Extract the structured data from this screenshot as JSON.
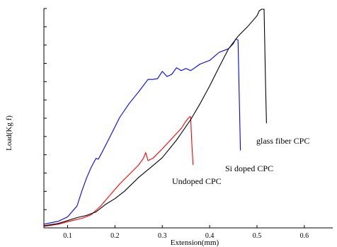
{
  "chart_data": {
    "type": "line",
    "xlabel": "Extension(mm)",
    "ylabel": "Load(Kg f)",
    "xlim": [
      0.05,
      0.66
    ],
    "ylim": [
      0,
      30
    ],
    "x_ticks": [
      "0.1",
      "0.2",
      "0.3",
      "0.4",
      "0.5",
      "0.6"
    ],
    "x_tick_values": [
      0.1,
      0.2,
      0.3,
      0.4,
      0.5,
      0.6
    ],
    "y_minor_tick_count": 12,
    "grid": false,
    "series": [
      {
        "name": "Undoped CPC",
        "color": "#ff0000",
        "annotation": "Undoped CPC",
        "x": [
          0.05,
          0.08,
          0.11,
          0.13,
          0.15,
          0.17,
          0.19,
          0.21,
          0.23,
          0.25,
          0.26,
          0.265,
          0.27,
          0.28,
          0.3,
          0.32,
          0.34,
          0.35,
          0.355,
          0.358,
          0.36,
          0.362,
          0.365
        ],
        "y": [
          0.2,
          0.5,
          1.0,
          1.3,
          1.8,
          3.0,
          4.5,
          6.0,
          7.3,
          8.6,
          9.5,
          10.3,
          9.2,
          9.5,
          10.8,
          12.2,
          13.6,
          14.6,
          15.0,
          15.2,
          15.2,
          12.0,
          8.6
        ]
      },
      {
        "name": "Si doped CPC",
        "color": "#0000ff",
        "annotation": "Si doped CPC",
        "x": [
          0.05,
          0.08,
          0.1,
          0.12,
          0.13,
          0.14,
          0.15,
          0.16,
          0.165,
          0.17,
          0.19,
          0.21,
          0.23,
          0.25,
          0.27,
          0.28,
          0.29,
          0.3,
          0.31,
          0.32,
          0.33,
          0.34,
          0.35,
          0.36,
          0.38,
          0.4,
          0.42,
          0.44,
          0.45,
          0.455,
          0.46,
          0.465
        ],
        "y": [
          0.5,
          0.9,
          1.5,
          3.0,
          5.0,
          6.8,
          8.3,
          9.5,
          9.4,
          10.0,
          12.5,
          15.1,
          17.0,
          18.6,
          20.3,
          20.3,
          20.4,
          21.4,
          20.7,
          21.0,
          21.9,
          21.5,
          21.8,
          21.5,
          22.4,
          22.9,
          24.0,
          24.5,
          25.2,
          25.8,
          25.7,
          10.6
        ]
      },
      {
        "name": "glass fiber CPC",
        "color": "#000000",
        "annotation": "glass fiber CPC",
        "x": [
          0.05,
          0.08,
          0.1,
          0.12,
          0.14,
          0.16,
          0.18,
          0.2,
          0.22,
          0.25,
          0.28,
          0.3,
          0.33,
          0.36,
          0.38,
          0.4,
          0.42,
          0.44,
          0.46,
          0.48,
          0.5,
          0.505,
          0.51,
          0.515,
          0.518,
          0.52
        ],
        "y": [
          0.3,
          0.6,
          1.0,
          1.4,
          1.7,
          2.2,
          3.2,
          4.0,
          5.0,
          6.9,
          8.5,
          9.6,
          12.0,
          14.8,
          17.0,
          19.4,
          22.0,
          24.5,
          26.2,
          27.5,
          29.0,
          29.7,
          29.9,
          29.9,
          20.0,
          14.3
        ]
      }
    ]
  }
}
